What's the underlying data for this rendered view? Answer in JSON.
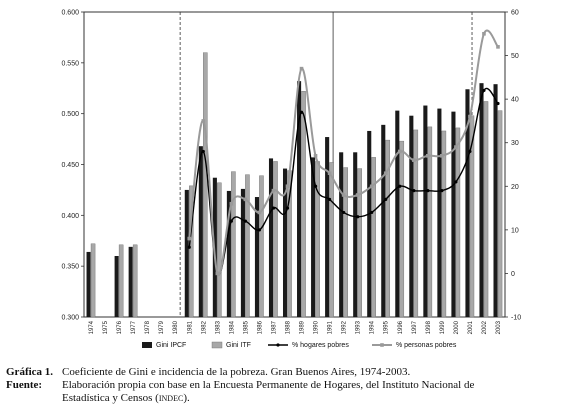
{
  "chart_data": {
    "type": "bar+line",
    "categories": [
      "1974",
      "1975",
      "1976",
      "1977",
      "1978",
      "1979",
      "1980",
      "1981",
      "1982",
      "1983",
      "1984",
      "1985",
      "1986",
      "1987",
      "1988",
      "1989",
      "1990",
      "1991",
      "1992",
      "1993",
      "1994",
      "1995",
      "1996",
      "1997",
      "1998",
      "1999",
      "2000",
      "2001",
      "2002",
      "2003"
    ],
    "left_axis": {
      "ticks": [
        "0.300",
        "0.350",
        "0.400",
        "0.450",
        "0.500",
        "0.550",
        "0.600"
      ],
      "ylim": [
        0.3,
        0.6
      ]
    },
    "right_axis": {
      "ticks": [
        "-10",
        "0",
        "10",
        "20",
        "30",
        "40",
        "50",
        "60"
      ],
      "ylim": [
        -10,
        60
      ]
    },
    "series": [
      {
        "name": "Gini IPCF",
        "kind": "bar",
        "axis": "left",
        "color": "#1a1a1a",
        "values": [
          0.364,
          null,
          0.36,
          0.369,
          null,
          null,
          null,
          0.425,
          0.468,
          0.437,
          0.424,
          0.426,
          0.418,
          0.456,
          0.446,
          0.532,
          0.457,
          0.477,
          0.462,
          0.462,
          0.483,
          0.489,
          0.503,
          0.498,
          0.508,
          0.505,
          0.502,
          0.524,
          0.53,
          0.529
        ]
      },
      {
        "name": "Gini ITF",
        "kind": "bar",
        "axis": "left",
        "color": "#a8a8a8",
        "values": [
          0.372,
          null,
          0.371,
          0.371,
          null,
          null,
          null,
          0.429,
          0.56,
          0.432,
          0.443,
          0.44,
          0.439,
          0.453,
          0.444,
          0.522,
          0.453,
          0.452,
          0.447,
          0.446,
          0.457,
          0.474,
          0.473,
          0.484,
          0.487,
          0.483,
          0.486,
          0.498,
          0.512,
          0.503
        ]
      },
      {
        "name": "% hogares pobres",
        "kind": "line",
        "axis": "right",
        "color": "#000000",
        "values": [
          null,
          null,
          null,
          null,
          null,
          null,
          null,
          6,
          28,
          0,
          12,
          12,
          10,
          15,
          15,
          37,
          20,
          17,
          14,
          13,
          14,
          17,
          20,
          19,
          19,
          19,
          21,
          28,
          42,
          39
        ]
      },
      {
        "name": "% personas pobres",
        "kind": "line",
        "axis": "right",
        "color": "#9a9a9a",
        "values": [
          null,
          null,
          null,
          null,
          null,
          null,
          null,
          8,
          35,
          0,
          16,
          17,
          14,
          19,
          20,
          47,
          27,
          23,
          18,
          18,
          20,
          23,
          28,
          26,
          27,
          27,
          29,
          36,
          55,
          52
        ]
      }
    ],
    "title": "",
    "xlabel": "",
    "ylabel": "",
    "grid": false,
    "legend_position": "bottom"
  },
  "caption": {
    "figure_label": "Gráfica 1.",
    "figure_text": "Coeficiente de Gini e incidencia de la pobreza. Gran Buenos Aires, 1974-2003.",
    "source_label": "Fuente:",
    "source_text_1": "Elaboración propia con base en la Encuesta Permanente de Hogares, del Instituto Nacional de",
    "source_text_2": "Estadística y Censos (",
    "source_acronym": "indec",
    "source_text_3": ")."
  }
}
